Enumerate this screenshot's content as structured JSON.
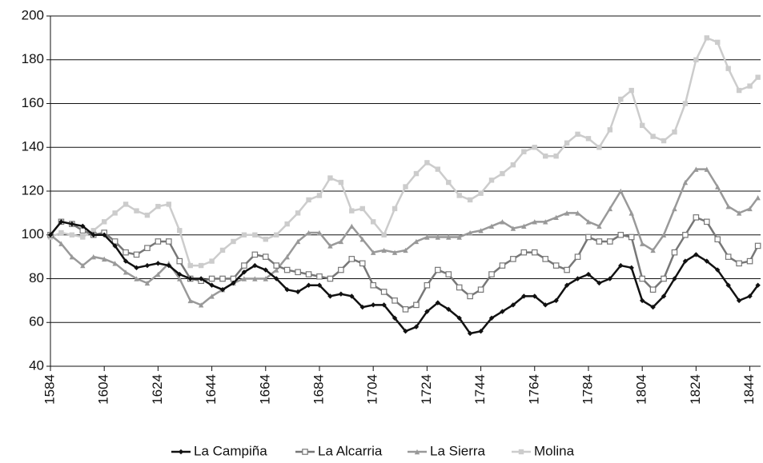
{
  "chart_data": {
    "type": "line",
    "x": [
      1584,
      1588,
      1592,
      1596,
      1600,
      1604,
      1608,
      1612,
      1616,
      1620,
      1624,
      1628,
      1632,
      1636,
      1640,
      1644,
      1648,
      1652,
      1656,
      1660,
      1664,
      1668,
      1672,
      1676,
      1680,
      1684,
      1688,
      1692,
      1696,
      1700,
      1704,
      1708,
      1712,
      1716,
      1720,
      1724,
      1728,
      1732,
      1736,
      1740,
      1744,
      1748,
      1752,
      1756,
      1760,
      1764,
      1768,
      1772,
      1776,
      1780,
      1784,
      1788,
      1792,
      1796,
      1800,
      1804,
      1808,
      1812,
      1816,
      1820,
      1824,
      1828,
      1832,
      1836,
      1840,
      1844,
      1847
    ],
    "series": [
      {
        "name": "La Campiña",
        "color": "#111111",
        "marker": "diamond",
        "values": [
          100,
          106,
          105,
          104,
          100,
          100,
          95,
          88,
          85,
          86,
          87,
          86,
          82,
          80,
          80,
          77,
          75,
          78,
          83,
          86,
          84,
          80,
          75,
          74,
          77,
          77,
          72,
          73,
          72,
          67,
          68,
          68,
          62,
          56,
          58,
          65,
          69,
          66,
          62,
          55,
          56,
          62,
          65,
          68,
          72,
          72,
          68,
          70,
          77,
          80,
          82,
          78,
          80,
          86,
          85,
          70,
          67,
          72,
          80,
          88,
          91,
          88,
          84,
          77,
          70,
          72,
          77
        ]
      },
      {
        "name": "La Alcarria",
        "color": "#777777",
        "marker": "square-open",
        "values": [
          100,
          106,
          105,
          102,
          100,
          101,
          97,
          92,
          91,
          94,
          97,
          97,
          88,
          80,
          79,
          80,
          80,
          80,
          86,
          91,
          90,
          86,
          84,
          83,
          82,
          81,
          80,
          84,
          89,
          87,
          77,
          74,
          70,
          66,
          68,
          77,
          84,
          82,
          76,
          72,
          75,
          82,
          86,
          89,
          92,
          92,
          89,
          86,
          84,
          90,
          99,
          97,
          97,
          100,
          99,
          80,
          75,
          80,
          92,
          100,
          108,
          106,
          98,
          90,
          87,
          88,
          95
        ]
      },
      {
        "name": "La Sierra",
        "color": "#999999",
        "marker": "triangle",
        "values": [
          100,
          96,
          90,
          86,
          90,
          89,
          87,
          83,
          80,
          78,
          82,
          87,
          80,
          70,
          68,
          72,
          75,
          78,
          80,
          80,
          80,
          84,
          90,
          97,
          101,
          101,
          95,
          97,
          104,
          98,
          92,
          93,
          92,
          93,
          97,
          99,
          99,
          99,
          99,
          101,
          102,
          104,
          106,
          103,
          104,
          106,
          106,
          108,
          110,
          110,
          106,
          104,
          112,
          120,
          110,
          96,
          93,
          100,
          112,
          124,
          130,
          130,
          122,
          113,
          110,
          112,
          117
        ]
      },
      {
        "name": "Molina",
        "color": "#cccccc",
        "marker": "square",
        "values": [
          99,
          101,
          100,
          99,
          102,
          106,
          110,
          114,
          111,
          109,
          113,
          114,
          102,
          86,
          86,
          88,
          93,
          97,
          100,
          100,
          98,
          100,
          105,
          110,
          116,
          118,
          126,
          124,
          111,
          112,
          106,
          100,
          112,
          122,
          128,
          133,
          130,
          124,
          118,
          116,
          119,
          125,
          128,
          132,
          138,
          140,
          136,
          136,
          142,
          146,
          144,
          140,
          148,
          162,
          166,
          150,
          145,
          143,
          147,
          160,
          180,
          190,
          188,
          176,
          166,
          168,
          172
        ]
      }
    ],
    "xlim": [
      1584,
      1848
    ],
    "xticks": [
      1584,
      1604,
      1624,
      1644,
      1664,
      1684,
      1704,
      1724,
      1744,
      1764,
      1784,
      1804,
      1824,
      1844
    ],
    "ylim": [
      40,
      200
    ],
    "yticks": [
      40,
      60,
      80,
      100,
      120,
      140,
      160,
      180,
      200
    ],
    "grid": true,
    "legend": "bottom"
  }
}
